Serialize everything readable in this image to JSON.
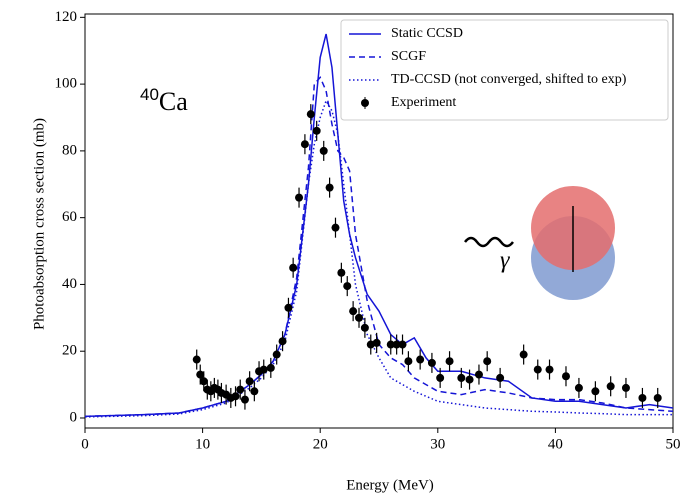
{
  "chart_data": {
    "type": "line",
    "xlabel": "Energy (MeV)",
    "ylabel": "Photoabsorption cross section (mb)",
    "annotation": {
      "sup": "40",
      "text": "Ca"
    },
    "inset_label": "γ",
    "xlim": [
      0,
      50
    ],
    "ylim": [
      -3,
      121
    ],
    "xticks": [
      0,
      10,
      20,
      30,
      40,
      50
    ],
    "yticks": [
      0,
      20,
      40,
      60,
      80,
      100,
      120
    ],
    "legend": "upper right",
    "series": [
      {
        "name": "Static CCSD",
        "color": "#1515d6",
        "dash": "solid",
        "x": [
          0,
          5,
          8,
          10,
          12,
          14,
          15,
          16,
          17,
          18,
          19,
          19.5,
          20,
          20.5,
          21,
          21.5,
          22,
          22.5,
          23,
          24,
          25,
          26,
          27,
          28,
          29,
          30,
          32,
          34,
          36,
          38,
          40,
          42,
          44,
          46,
          48,
          50
        ],
        "values": [
          0.5,
          1,
          1.5,
          3,
          5,
          10,
          13,
          17,
          25,
          40,
          70,
          90,
          108,
          115,
          105,
          85,
          65,
          55,
          48,
          37,
          32,
          25,
          22,
          24,
          18,
          14,
          14,
          12,
          11,
          6,
          5,
          5,
          4,
          3,
          4,
          3
        ]
      },
      {
        "name": "SCGF",
        "color": "#1515d6",
        "dash": "dashed",
        "x": [
          0,
          5,
          8,
          10,
          12,
          14,
          15,
          16,
          17,
          18,
          19,
          19.5,
          20,
          20.5,
          21,
          21.5,
          22,
          22.5,
          23,
          24,
          25,
          26,
          27,
          28,
          29,
          30,
          32,
          34,
          36,
          38,
          40,
          42,
          44,
          46,
          48,
          50
        ],
        "values": [
          0.5,
          1,
          1.5,
          3,
          5,
          10,
          13,
          17,
          25,
          42,
          75,
          100,
          102,
          98,
          88,
          80,
          78,
          74,
          55,
          35,
          22,
          18,
          16,
          12,
          10,
          8,
          7,
          8.5,
          7.5,
          6,
          5.5,
          5.5,
          4.5,
          3,
          2.5,
          2
        ]
      },
      {
        "name": "TD-CCSD (not converged, shifted to exp)",
        "color": "#1515d6",
        "dash": "dotted",
        "x": [
          0,
          5,
          8,
          10,
          12,
          14,
          15,
          16,
          17,
          18,
          19,
          19.5,
          20,
          20.5,
          21,
          21.5,
          22,
          22.5,
          23,
          24,
          25,
          26,
          27,
          28,
          29,
          30,
          32,
          34,
          36,
          38,
          40,
          42,
          44,
          46,
          48,
          50
        ],
        "values": [
          0.3,
          0.7,
          1.2,
          2.5,
          4.5,
          9,
          12,
          16,
          23,
          38,
          70,
          82,
          90,
          95,
          92,
          85,
          70,
          55,
          40,
          25,
          18,
          12,
          10,
          8,
          6.5,
          5,
          4,
          3,
          2.5,
          2,
          1.8,
          1.5,
          1.3,
          1,
          1,
          1
        ]
      },
      {
        "name": "Experiment",
        "color": "#000000",
        "marker": "point",
        "x": [
          9.5,
          9.8,
          10.1,
          10.4,
          10.7,
          11,
          11.3,
          11.6,
          12,
          12.4,
          12.8,
          13.2,
          13.6,
          14,
          14.4,
          14.8,
          15.2,
          15.8,
          16.3,
          16.8,
          17.3,
          17.7,
          18.2,
          18.7,
          19.2,
          19.7,
          20.3,
          20.8,
          21.3,
          21.8,
          22.3,
          22.8,
          23.3,
          23.8,
          24.3,
          24.8,
          26,
          26.5,
          27,
          27.5,
          28.5,
          29.5,
          30.2,
          31,
          32,
          32.7,
          33.5,
          34.2,
          35.3,
          37.3,
          38.5,
          39.5,
          40.9,
          42,
          43.4,
          44.7,
          46,
          47.4,
          48.7
        ],
        "values": [
          17.5,
          13,
          11,
          8.5,
          8,
          9,
          8.5,
          7.5,
          7,
          6,
          6.5,
          8.5,
          5.5,
          11,
          8,
          14,
          14.5,
          15,
          19,
          23,
          33,
          45,
          66,
          82,
          91,
          86,
          80,
          69,
          57,
          43.5,
          39.5,
          32,
          30,
          27,
          22,
          22.5,
          22,
          22,
          22,
          17,
          17.5,
          16.5,
          12,
          17,
          12,
          11.5,
          13,
          17,
          12,
          19,
          14.5,
          14.5,
          12.5,
          9,
          8,
          9.5,
          9,
          6,
          6
        ],
        "errors": [
          3,
          3,
          3,
          3,
          3,
          3,
          3,
          3,
          3,
          3,
          3,
          3,
          3,
          3,
          3,
          3,
          3,
          3,
          3,
          3,
          3,
          3,
          3,
          3,
          3,
          3,
          3,
          3,
          3,
          3,
          3,
          3,
          3,
          3,
          3,
          3,
          3,
          3,
          3,
          3,
          3,
          3,
          3,
          3,
          3,
          3,
          3,
          3,
          3,
          3,
          3,
          3,
          3,
          3,
          3,
          3,
          3,
          3,
          3
        ]
      }
    ]
  }
}
